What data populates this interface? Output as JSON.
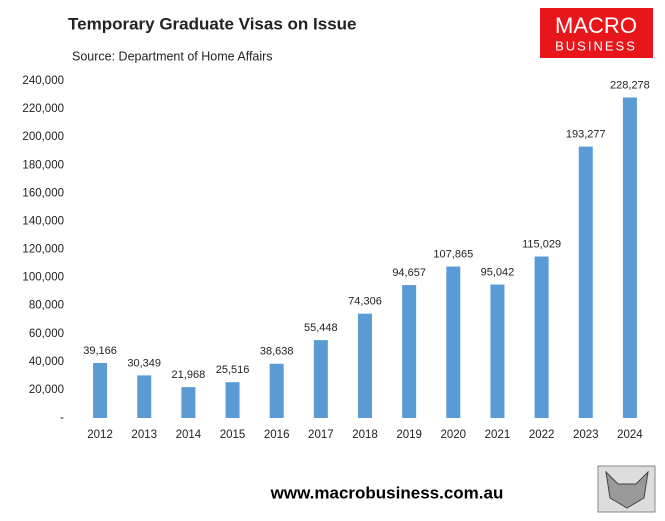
{
  "chart_data": {
    "type": "bar",
    "title": "Temporary Graduate Visas on Issue",
    "subtitle": "Source: Department of Home Affairs",
    "logo": {
      "top": "MACRO",
      "bottom": "BUSINESS"
    },
    "footer": "www.macrobusiness.com.au",
    "categories": [
      "2012",
      "2013",
      "2014",
      "2015",
      "2016",
      "2017",
      "2018",
      "2019",
      "2020",
      "2021",
      "2022",
      "2023",
      "2024"
    ],
    "values": [
      39166,
      30349,
      21968,
      25516,
      38638,
      55448,
      74306,
      94657,
      107865,
      95042,
      115029,
      193277,
      228278
    ],
    "value_labels": [
      "39,166",
      "30,349",
      "21,968",
      "25,516",
      "38,638",
      "55,448",
      "74,306",
      "94,657",
      "107,865",
      "95,042",
      "115,029",
      "193,277",
      "228,278"
    ],
    "color": "#5b9bd5",
    "ylim": [
      0,
      240000
    ],
    "yticks": [
      {
        "value": 0,
        "label": "-"
      },
      {
        "value": 20000,
        "label": "20,000"
      },
      {
        "value": 40000,
        "label": "40,000"
      },
      {
        "value": 60000,
        "label": "60,000"
      },
      {
        "value": 80000,
        "label": "80,000"
      },
      {
        "value": 100000,
        "label": "100,000"
      },
      {
        "value": 120000,
        "label": "120,000"
      },
      {
        "value": 140000,
        "label": "140,000"
      },
      {
        "value": 160000,
        "label": "160,000"
      },
      {
        "value": 180000,
        "label": "180,000"
      },
      {
        "value": 200000,
        "label": "200,000"
      },
      {
        "value": 220000,
        "label": "220,000"
      },
      {
        "value": 240000,
        "label": "240,000"
      }
    ],
    "grid": false
  }
}
